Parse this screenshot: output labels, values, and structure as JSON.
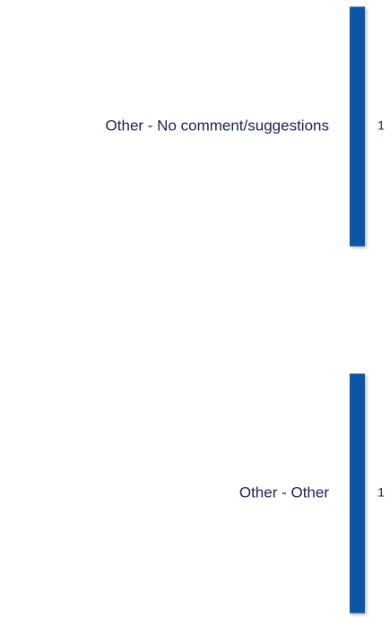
{
  "chart_data": {
    "type": "bar",
    "orientation": "horizontal",
    "categories": [
      "Other - No comment/suggestions",
      "Other - Other"
    ],
    "values": [
      1,
      1
    ],
    "color": "#0a56a5"
  }
}
